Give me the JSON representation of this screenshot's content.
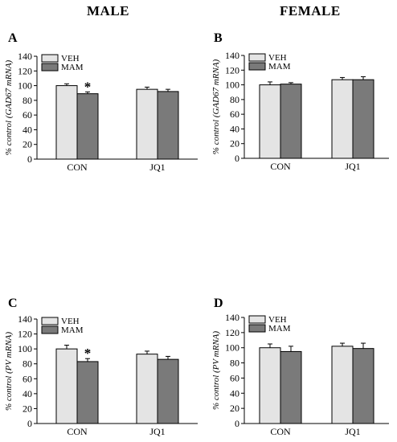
{
  "column_headers": {
    "male": "MALE",
    "female": "FEMALE"
  },
  "colors": {
    "veh": "#e4e4e4",
    "mam": "#7a7a7a",
    "stroke": "#000000"
  },
  "chart_data": [
    {
      "panel": "A",
      "type": "bar",
      "ylabel": "% control (GAD67 mRNA)",
      "ylim": [
        0,
        140
      ],
      "yticks": [
        0,
        20,
        40,
        60,
        80,
        100,
        120,
        140
      ],
      "categories": [
        "CON",
        "JQ1"
      ],
      "series": [
        {
          "name": "VEH",
          "values": [
            100,
            95
          ],
          "errors": [
            2.5,
            3
          ]
        },
        {
          "name": "MAM",
          "values": [
            89,
            92
          ],
          "errors": [
            2.5,
            3
          ]
        }
      ],
      "annotations": [
        {
          "text": "*",
          "category": 0,
          "series": 1
        }
      ],
      "legend_position": "top-left"
    },
    {
      "panel": "B",
      "type": "bar",
      "ylabel": "% control (GAD67 mRNA)",
      "ylim": [
        0,
        140
      ],
      "yticks": [
        0,
        20,
        40,
        60,
        80,
        100,
        120,
        140
      ],
      "categories": [
        "CON",
        "JQ1"
      ],
      "series": [
        {
          "name": "VEH",
          "values": [
            100,
            107
          ],
          "errors": [
            4,
            3
          ]
        },
        {
          "name": "MAM",
          "values": [
            101,
            107
          ],
          "errors": [
            2,
            4
          ]
        }
      ],
      "annotations": [],
      "legend_position": "top-left"
    },
    {
      "panel": "C",
      "type": "bar",
      "ylabel": "% control (PV mRNA)",
      "ylim": [
        0,
        140
      ],
      "yticks": [
        0,
        20,
        40,
        60,
        80,
        100,
        120,
        140
      ],
      "categories": [
        "CON",
        "JQ1"
      ],
      "series": [
        {
          "name": "VEH",
          "values": [
            100,
            93
          ],
          "errors": [
            5,
            4
          ]
        },
        {
          "name": "MAM",
          "values": [
            83,
            86
          ],
          "errors": [
            4,
            4
          ]
        }
      ],
      "annotations": [
        {
          "text": "*",
          "category": 0,
          "series": 1
        }
      ],
      "legend_position": "top-left"
    },
    {
      "panel": "D",
      "type": "bar",
      "ylabel": "% control (PV mRNA)",
      "ylim": [
        0,
        140
      ],
      "yticks": [
        0,
        20,
        40,
        60,
        80,
        100,
        120,
        140
      ],
      "categories": [
        "CON",
        "JQ1"
      ],
      "series": [
        {
          "name": "VEH",
          "values": [
            100,
            102
          ],
          "errors": [
            5,
            4
          ]
        },
        {
          "name": "MAM",
          "values": [
            95,
            99
          ],
          "errors": [
            7,
            7
          ]
        }
      ],
      "annotations": [],
      "legend_position": "top-left"
    }
  ]
}
